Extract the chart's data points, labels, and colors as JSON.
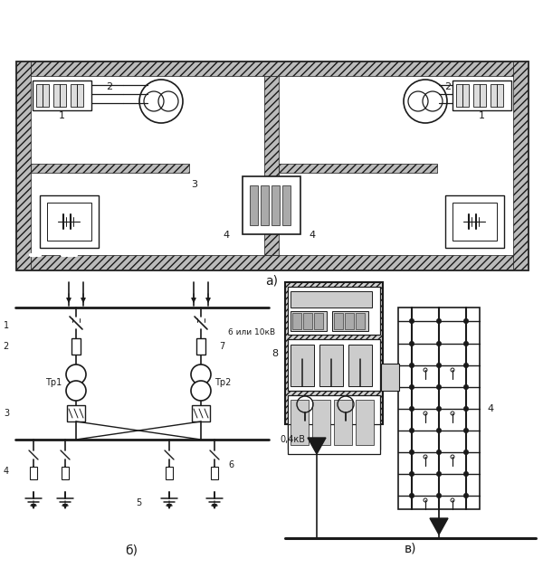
{
  "bg_color": "#ffffff",
  "line_color": "#1a1a1a",
  "fig_width": 6.0,
  "fig_height": 6.28,
  "dpi": 100,
  "label_a": "а)",
  "label_b": "б)",
  "label_c": "в)",
  "text_6_10kv": "6 или 10кВ",
  "text_04kv": "0,4кВ",
  "label_1": "1",
  "label_2": "2",
  "label_3": "3",
  "label_4": "4",
  "label_5": "5",
  "label_6": "6",
  "label_7": "7",
  "label_8": "8",
  "label_tp1": "Тр1",
  "label_tp2": "Тр2"
}
